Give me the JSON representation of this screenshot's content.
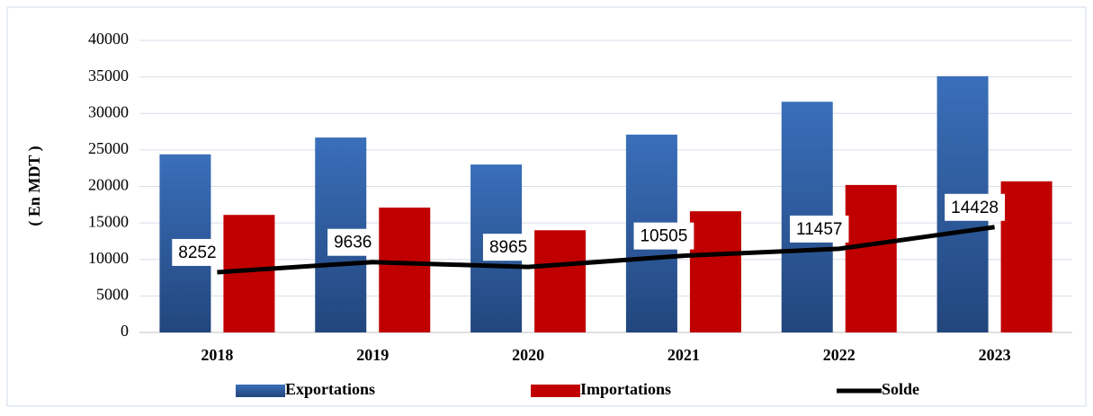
{
  "chart_data": {
    "type": "bar",
    "y_label": "( En MDT )",
    "categories": [
      "2018",
      "2019",
      "2020",
      "2021",
      "2022",
      "2023"
    ],
    "series": [
      {
        "name": "Exportations",
        "color": "#2f5d9e",
        "values": [
          24400,
          26700,
          23000,
          27100,
          31600,
          35100
        ]
      },
      {
        "name": "Importations",
        "color": "#c00000",
        "values": [
          16100,
          17100,
          14000,
          16600,
          20200,
          20700
        ]
      },
      {
        "name": "Solde",
        "color": "#000000",
        "type": "line",
        "values": [
          8252,
          9636,
          8965,
          10505,
          11457,
          14428
        ]
      }
    ],
    "ylim": [
      0,
      40000
    ],
    "yticks": [
      0,
      5000,
      10000,
      15000,
      20000,
      25000,
      30000,
      35000,
      40000
    ],
    "grid": true,
    "legend": "bottom"
  }
}
